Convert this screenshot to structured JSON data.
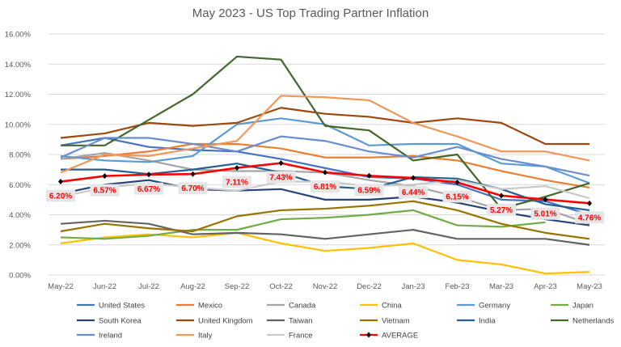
{
  "chart_data": {
    "type": "line",
    "title": "May 2023 - US Top Trading Partner Inflation",
    "xlabel": "",
    "ylabel": "",
    "ylim": [
      0,
      16
    ],
    "ytick_step": 2,
    "ytick_format": "percent_2dp",
    "grid": "horizontal",
    "legend_position": "bottom",
    "categories": [
      "May-22",
      "Jun-22",
      "Jul-22",
      "Aug-22",
      "Sep-22",
      "Oct-22",
      "Nov-22",
      "Dec-22",
      "Jan-23",
      "Feb-23",
      "Mar-23",
      "Apr-23",
      "May-23"
    ],
    "series": [
      {
        "name": "United States",
        "color": "#4472C4",
        "values": [
          8.6,
          9.1,
          8.5,
          8.3,
          8.2,
          7.7,
          7.1,
          6.5,
          6.4,
          6.0,
          5.0,
          4.9,
          4.0
        ]
      },
      {
        "name": "Mexico",
        "color": "#ED7D31",
        "values": [
          7.7,
          7.9,
          8.2,
          8.7,
          8.7,
          8.4,
          7.8,
          7.8,
          7.9,
          7.6,
          6.9,
          6.3,
          5.8
        ]
      },
      {
        "name": "Canada",
        "color": "#A5A5A5",
        "values": [
          7.7,
          8.1,
          7.6,
          7.0,
          6.9,
          6.9,
          6.8,
          6.3,
          5.9,
          5.2,
          4.3,
          4.4,
          3.4
        ]
      },
      {
        "name": "China",
        "color": "#FFC000",
        "values": [
          2.1,
          2.5,
          2.7,
          2.5,
          2.8,
          2.1,
          1.6,
          1.8,
          2.1,
          1.0,
          0.7,
          0.1,
          0.2
        ]
      },
      {
        "name": "Germany",
        "color": "#5B9BD5",
        "values": [
          7.9,
          7.6,
          7.5,
          7.9,
          10.0,
          10.4,
          10.0,
          8.6,
          8.7,
          8.7,
          7.4,
          7.2,
          6.1
        ]
      },
      {
        "name": "Japan",
        "color": "#70AD47",
        "values": [
          2.5,
          2.4,
          2.6,
          3.0,
          3.0,
          3.7,
          3.8,
          4.0,
          4.3,
          3.3,
          3.2,
          3.5,
          null
        ]
      },
      {
        "name": "South Korea",
        "color": "#264478",
        "values": [
          5.4,
          6.0,
          6.3,
          5.7,
          5.6,
          5.7,
          5.0,
          5.0,
          5.2,
          4.8,
          4.2,
          3.7,
          3.3
        ]
      },
      {
        "name": "United Kingdom",
        "color": "#9E480E",
        "values": [
          9.1,
          9.4,
          10.1,
          9.9,
          10.1,
          11.1,
          10.7,
          10.5,
          10.1,
          10.4,
          10.1,
          8.7,
          8.7
        ]
      },
      {
        "name": "Taiwan",
        "color": "#636363",
        "values": [
          3.4,
          3.6,
          3.4,
          2.7,
          2.8,
          2.7,
          2.4,
          2.7,
          3.0,
          2.4,
          2.4,
          2.4,
          2.0
        ]
      },
      {
        "name": "Vietnam",
        "color": "#997300",
        "values": [
          2.9,
          3.4,
          3.1,
          2.9,
          3.9,
          4.3,
          4.4,
          4.6,
          4.9,
          4.3,
          3.4,
          2.8,
          2.4
        ]
      },
      {
        "name": "India",
        "color": "#255E91",
        "values": [
          7.0,
          7.0,
          6.7,
          7.0,
          7.4,
          6.8,
          5.9,
          5.7,
          6.5,
          6.4,
          5.7,
          4.7,
          4.3
        ]
      },
      {
        "name": "Netherlands",
        "color": "#43682B",
        "values": [
          8.6,
          8.6,
          10.3,
          12.0,
          14.5,
          14.3,
          9.9,
          9.6,
          7.6,
          8.0,
          4.4,
          5.2,
          6.1
        ]
      },
      {
        "name": "Ireland",
        "color": "#698ED0",
        "values": [
          7.8,
          9.1,
          9.1,
          8.7,
          8.2,
          9.2,
          8.9,
          8.2,
          7.8,
          8.5,
          7.7,
          7.2,
          6.6
        ]
      },
      {
        "name": "Italy",
        "color": "#F1975A",
        "values": [
          6.8,
          8.0,
          7.9,
          8.4,
          8.9,
          11.9,
          11.8,
          11.6,
          10.1,
          9.2,
          8.2,
          8.2,
          7.6
        ]
      },
      {
        "name": "France",
        "color": "#C9C9C9",
        "values": [
          5.2,
          5.8,
          6.1,
          5.8,
          5.6,
          6.2,
          6.2,
          5.9,
          6.0,
          6.3,
          5.7,
          5.9,
          5.1
        ]
      },
      {
        "name": "AVERAGE",
        "color": "#FF0000",
        "marker": "diamond-black",
        "values": [
          6.2,
          6.57,
          6.67,
          6.7,
          7.11,
          7.43,
          6.81,
          6.59,
          6.44,
          6.15,
          5.27,
          5.01,
          4.76
        ],
        "data_labels": [
          "6.20%",
          "6.57%",
          "6.67%",
          "6.70%",
          "7.11%",
          "7.43%",
          "6.81%",
          "6.59%",
          "6.44%",
          "6.15%",
          "5.27%",
          "5.01%",
          "4.76%"
        ]
      }
    ]
  }
}
